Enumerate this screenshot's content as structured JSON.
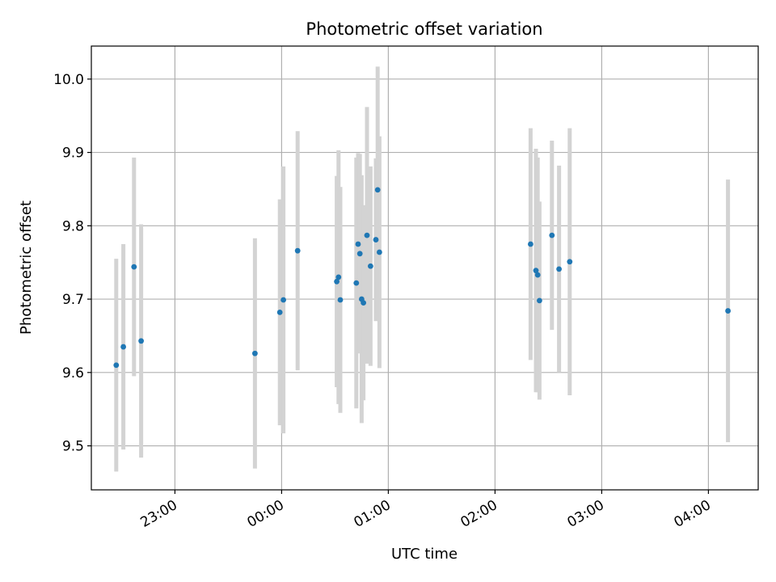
{
  "chart_data": {
    "type": "scatter",
    "title": "Photometric offset variation",
    "xlabel": "UTC time",
    "ylabel": "Photometric offset",
    "grid": true,
    "x_ticks": [
      "23:00",
      "00:00",
      "01:00",
      "02:00",
      "03:00",
      "04:00"
    ],
    "y_ticks": [
      "9.5",
      "9.6",
      "9.7",
      "9.8",
      "9.9",
      "10.0"
    ],
    "xlim": [
      "22:13",
      "04:28"
    ],
    "ylim": [
      9.44,
      10.045
    ],
    "colors": {
      "point": "#1f77b4",
      "errorbar": "#d3d3d3"
    },
    "series": [
      {
        "points": [
          {
            "x": "22:27",
            "y": 9.61,
            "yerr": 0.145
          },
          {
            "x": "22:31",
            "y": 9.635,
            "yerr": 0.14
          },
          {
            "x": "22:37",
            "y": 9.744,
            "yerr": 0.149
          },
          {
            "x": "22:41",
            "y": 9.643,
            "yerr": 0.159
          },
          {
            "x": "23:45",
            "y": 9.626,
            "yerr": 0.157
          },
          {
            "x": "23:59",
            "y": 9.682,
            "yerr": 0.154
          },
          {
            "x": "00:01",
            "y": 9.699,
            "yerr": 0.182
          },
          {
            "x": "00:09",
            "y": 9.766,
            "yerr": 0.163
          },
          {
            "x": "00:31",
            "y": 9.724,
            "yerr": 0.144
          },
          {
            "x": "00:32",
            "y": 9.73,
            "yerr": 0.173
          },
          {
            "x": "00:33",
            "y": 9.699,
            "yerr": 0.154
          },
          {
            "x": "00:42",
            "y": 9.722,
            "yerr": 0.171
          },
          {
            "x": "00:43",
            "y": 9.775,
            "yerr": 0.124
          },
          {
            "x": "00:44",
            "y": 9.762,
            "yerr": 0.136
          },
          {
            "x": "00:45",
            "y": 9.7,
            "yerr": 0.169
          },
          {
            "x": "00:46",
            "y": 9.695,
            "yerr": 0.133
          },
          {
            "x": "00:48",
            "y": 9.787,
            "yerr": 0.175
          },
          {
            "x": "00:50",
            "y": 9.745,
            "yerr": 0.136
          },
          {
            "x": "00:53",
            "y": 9.781,
            "yerr": 0.111
          },
          {
            "x": "00:54",
            "y": 9.849,
            "yerr": 0.168
          },
          {
            "x": "00:55",
            "y": 9.764,
            "yerr": 0.158
          },
          {
            "x": "02:20",
            "y": 9.775,
            "yerr": 0.158
          },
          {
            "x": "02:23",
            "y": 9.739,
            "yerr": 0.166
          },
          {
            "x": "02:24",
            "y": 9.733,
            "yerr": 0.16
          },
          {
            "x": "02:25",
            "y": 9.698,
            "yerr": 0.135
          },
          {
            "x": "02:32",
            "y": 9.787,
            "yerr": 0.129
          },
          {
            "x": "02:36",
            "y": 9.741,
            "yerr": 0.141
          },
          {
            "x": "02:42",
            "y": 9.751,
            "yerr": 0.182
          },
          {
            "x": "04:11",
            "y": 9.684,
            "yerr": 0.179
          }
        ]
      }
    ]
  }
}
